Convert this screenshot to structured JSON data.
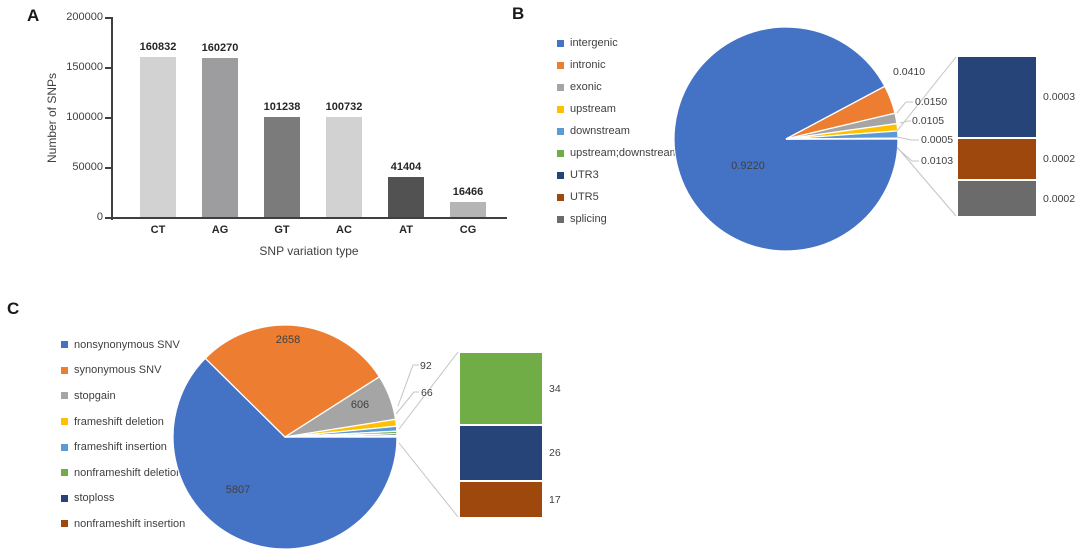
{
  "figure": {
    "panel_labels": [
      "A",
      "B",
      "C"
    ]
  },
  "chart_data": [
    {
      "panel": "A",
      "type": "bar",
      "categories": [
        "CT",
        "AG",
        "GT",
        "AC",
        "AT",
        "CG"
      ],
      "values": [
        160832,
        160270,
        101238,
        100732,
        41404,
        16466
      ],
      "value_labels": [
        "160832",
        "160270",
        "101238",
        "100732",
        "41404",
        "16466"
      ],
      "bar_colors": [
        "#d2d2d2",
        "#9d9da0",
        "#7b7b7b",
        "#d2d2d2",
        "#525252",
        "#b5b5b5"
      ],
      "title": "",
      "xlabel": "SNP variation type",
      "ylabel": "Number of SNPs",
      "ylim": [
        0,
        200000
      ],
      "yticks": [
        0,
        50000,
        100000,
        150000,
        200000
      ],
      "ytick_labels": [
        "0",
        "50000",
        "100000",
        "150000",
        "200000"
      ],
      "grid": false
    },
    {
      "panel": "B",
      "type": "pie-with-bar-breakout",
      "legend_position": "left",
      "slices": [
        {
          "label": "intergenic",
          "value": 0.922,
          "display": "0.9220",
          "color": "#4472c4"
        },
        {
          "label": "intronic",
          "value": 0.041,
          "display": "0.0410",
          "color": "#ed7d31"
        },
        {
          "label": "exonic",
          "value": 0.015,
          "display": "0.0150",
          "color": "#a5a5a5"
        },
        {
          "label": "upstream",
          "value": 0.0105,
          "display": "0.0105",
          "color": "#ffc000"
        },
        {
          "label": "downstream",
          "value": 0.0103,
          "display": "0.0103",
          "color": "#5b9bd5"
        },
        {
          "label": "upstream;downstream",
          "value": 0.0005,
          "display": "0.0005",
          "color": "#70ad47"
        },
        {
          "label": "UTR3",
          "value": 0.0003,
          "display": "0.0003",
          "color": "#264478"
        },
        {
          "label": "UTR5",
          "value": 0.0002,
          "display": "0.0002",
          "color": "#9e480e"
        },
        {
          "label": "splicing",
          "value": 0.0002,
          "display": "0.0002",
          "color": "#6b6b6b"
        }
      ],
      "inside_labels": [
        {
          "slice": 0,
          "text": "0.9220"
        }
      ],
      "callout_labels": [
        "0.0410",
        "0.0150",
        "0.0105",
        "0.0005",
        "0.0103"
      ],
      "breakout_bar": {
        "segments": [
          {
            "text": "0.0003",
            "color": "#264478"
          },
          {
            "text": "0.0002",
            "color": "#9e480e"
          },
          {
            "text": "0.0002",
            "color": "#6b6b6b"
          }
        ]
      }
    },
    {
      "panel": "C",
      "type": "pie-with-bar-breakout",
      "legend_position": "left",
      "slices": [
        {
          "label": "nonsynonymous SNV",
          "value": 5807,
          "display": "5807",
          "color": "#4472c4"
        },
        {
          "label": "synonymous SNV",
          "value": 2658,
          "display": "2658",
          "color": "#ed7d31"
        },
        {
          "label": "stopgain",
          "value": 606,
          "display": "606",
          "color": "#a5a5a5"
        },
        {
          "label": "frameshift deletion",
          "value": 92,
          "display": "92",
          "color": "#ffc000"
        },
        {
          "label": "frameshift insertion",
          "value": 66,
          "display": "66",
          "color": "#5b9bd5"
        },
        {
          "label": "nonframeshift deletion",
          "value": 34,
          "display": "34",
          "color": "#70ad47"
        },
        {
          "label": "stoploss",
          "value": 26,
          "display": "26",
          "color": "#264478"
        },
        {
          "label": "nonframeshift insertion",
          "value": 17,
          "display": "17",
          "color": "#9e480e"
        }
      ],
      "inside_labels": [
        {
          "slice": 0,
          "text": "5807"
        },
        {
          "slice": 1,
          "text": "2658"
        },
        {
          "slice": 2,
          "text": "606"
        }
      ],
      "callout_labels": [
        "92",
        "66"
      ],
      "breakout_bar": {
        "segments": [
          {
            "text": "34",
            "color": "#70ad47"
          },
          {
            "text": "26",
            "color": "#264478"
          },
          {
            "text": "17",
            "color": "#9e480e"
          }
        ]
      }
    }
  ]
}
